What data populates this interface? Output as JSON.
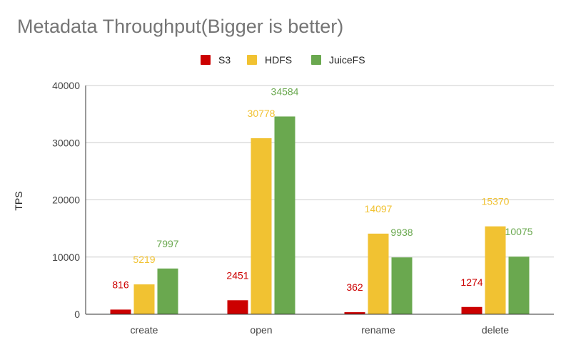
{
  "chart_data": {
    "type": "bar",
    "title": "Metadata Throughput(Bigger is better)",
    "xlabel": "",
    "ylabel": "TPS",
    "categories": [
      "create",
      "open",
      "rename",
      "delete"
    ],
    "series": [
      {
        "name": "S3",
        "color": "#cc0000",
        "values": [
          816,
          2451,
          362,
          1274
        ]
      },
      {
        "name": "HDFS",
        "color": "#f1c232",
        "values": [
          5219,
          30778,
          14097,
          15370
        ]
      },
      {
        "name": "JuiceFS",
        "color": "#6aa84f",
        "values": [
          7997,
          34584,
          9938,
          10075
        ]
      }
    ],
    "ylim": [
      0,
      40000
    ],
    "yticks": [
      0,
      10000,
      20000,
      30000,
      40000
    ],
    "grid": true,
    "legend_position": "top"
  }
}
